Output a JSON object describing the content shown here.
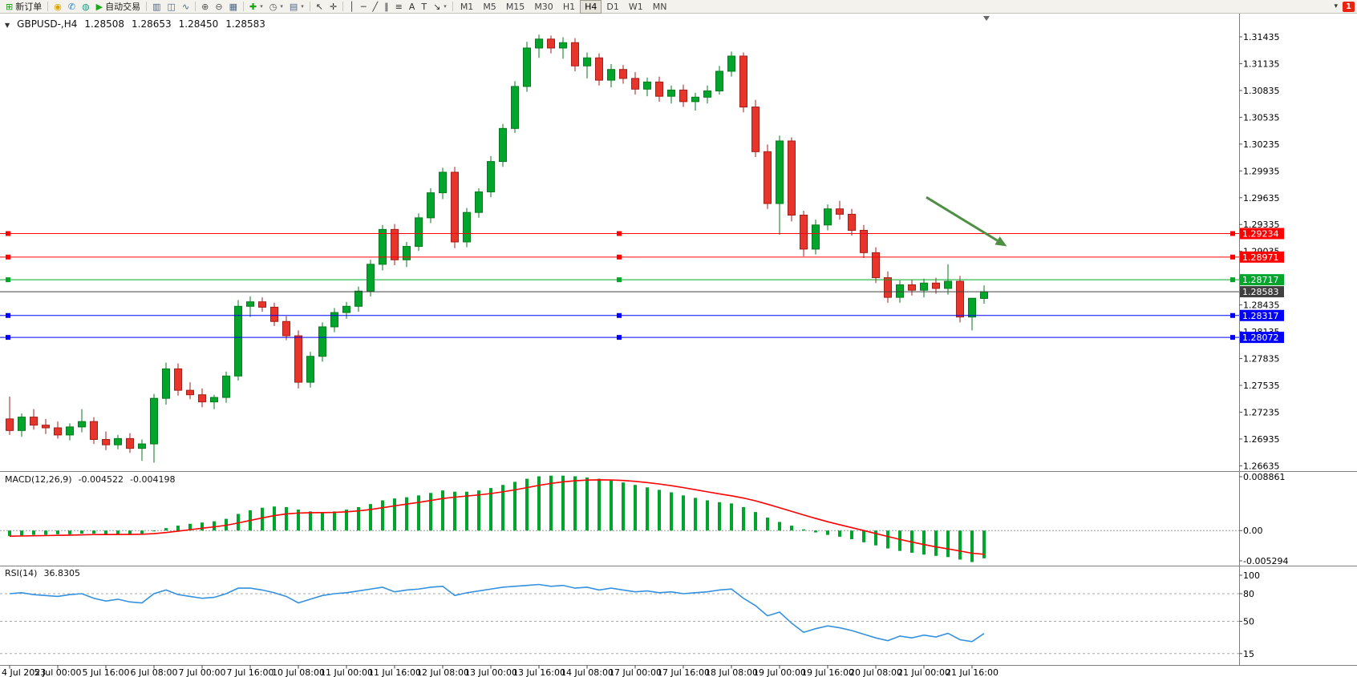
{
  "toolbar": {
    "dropdown_icon": "▾",
    "overflow_icon": "▾",
    "news_badge": "1",
    "timeframes": [
      "M1",
      "M5",
      "M15",
      "M30",
      "H1",
      "H4",
      "D1",
      "W1",
      "MN"
    ],
    "active_timeframe": "H4",
    "items": [
      {
        "name": "new-order-button",
        "glyph": "⊞",
        "glyph_color": "#18A018",
        "label": "新订单"
      },
      {
        "kind": "sep"
      },
      {
        "name": "mql5-community-button",
        "glyph": "◉",
        "glyph_color": "#DFA500"
      },
      {
        "name": "mobile-app-button",
        "glyph": "✆",
        "glyph_color": "#1C7ECB"
      },
      {
        "name": "signals-button",
        "glyph": "◍",
        "glyph_color": "#16A08A"
      },
      {
        "name": "autotrade-button",
        "glyph": "▶",
        "glyph_color": "#1BAA1B",
        "label": "自动交易"
      },
      {
        "kind": "sep"
      },
      {
        "name": "bar-chart-button",
        "glyph": "▥",
        "glyph_color": "#4A6785"
      },
      {
        "name": "candlestick-chart-button",
        "glyph": "◫",
        "glyph_color": "#4A6785"
      },
      {
        "name": "line-chart-button",
        "glyph": "∿",
        "glyph_color": "#4A6785"
      },
      {
        "kind": "sep"
      },
      {
        "name": "zoom-in-button",
        "glyph": "⊕",
        "glyph_color": "#555555"
      },
      {
        "name": "zoom-out-button",
        "glyph": "⊖",
        "glyph_color": "#555555"
      },
      {
        "name": "tile-windows-button",
        "glyph": "▦",
        "glyph_color": "#4A6785"
      },
      {
        "kind": "sep"
      },
      {
        "name": "indicators-button",
        "glyph": "✚",
        "glyph_color": "#18A018",
        "dropdown": true
      },
      {
        "name": "periods-button",
        "glyph": "◷",
        "glyph_color": "#555555",
        "dropdown": true
      },
      {
        "name": "templates-button",
        "glyph": "▤",
        "glyph_color": "#4A6785",
        "dropdown": true
      },
      {
        "kind": "sep"
      },
      {
        "name": "cursor-button",
        "glyph": "↖",
        "glyph_color": "#333333"
      },
      {
        "name": "crosshair-button",
        "glyph": "✛",
        "glyph_color": "#333333"
      },
      {
        "kind": "sep"
      },
      {
        "name": "vertical-line-button",
        "glyph": "│",
        "glyph_color": "#333333"
      },
      {
        "name": "horizontal-line-button",
        "glyph": "─",
        "glyph_color": "#333333"
      },
      {
        "name": "trendline-button",
        "glyph": "╱",
        "glyph_color": "#333333"
      },
      {
        "name": "channel-button",
        "glyph": "∥",
        "glyph_color": "#333333"
      },
      {
        "name": "fibonacci-button",
        "glyph": "≡",
        "glyph_color": "#333333"
      },
      {
        "name": "text-button",
        "glyph": "A",
        "glyph_color": "#333333"
      },
      {
        "name": "text-label-button",
        "glyph": "T",
        "glyph_color": "#333333"
      },
      {
        "name": "arrows-button",
        "glyph": "↘",
        "glyph_color": "#333333",
        "dropdown": true
      },
      {
        "kind": "sep"
      }
    ]
  },
  "icons": {
    "chart_dropdown": "▼"
  },
  "chart": {
    "header": {
      "symbol": "GBPUSD-,H4",
      "open": "1.28508",
      "high": "1.28653",
      "low": "1.28450",
      "close": "1.28583"
    },
    "y_axis_ticks": [
      "1.31435",
      "1.31135",
      "1.30835",
      "1.30535",
      "1.30235",
      "1.29935",
      "1.29635",
      "1.29335",
      "1.29035",
      "1.28735",
      "1.28435",
      "1.28135",
      "1.27835",
      "1.27535",
      "1.27235",
      "1.26935",
      "1.26635"
    ],
    "macd": {
      "label": "MACD(12,26,9)",
      "macd_value": "-0.004522",
      "signal_value": "-0.004198",
      "axis_ticks": [
        "0.008861",
        "0.00",
        "-0.005294"
      ]
    },
    "rsi": {
      "label": "RSI(14)",
      "value": "36.8305",
      "axis_ticks": [
        "100",
        "80",
        "50",
        "15"
      ],
      "levels": [
        80,
        50,
        15
      ]
    },
    "colors": {
      "bull": "#00A62C",
      "bull_border": "#067A1E",
      "bear": "#E8352B",
      "bear_border": "#A61E18",
      "macd_hist": "#00A62C",
      "macd_signal": "#FF0000",
      "rsi_line": "#3391E0",
      "arrow": "#4E8F44",
      "axis_line": "#808080",
      "badge_text": "#FFFFFF"
    }
  },
  "chart_data": {
    "type": "candlestick",
    "symbol": "GBPUSD-",
    "timeframe": "H4",
    "x_labels": [
      "4 Jul 2023",
      "5 Jul 00:00",
      "5 Jul 16:00",
      "6 Jul 08:00",
      "7 Jul 00:00",
      "7 Jul 16:00",
      "10 Jul 08:00",
      "11 Jul 00:00",
      "11 Jul 16:00",
      "12 Jul 08:00",
      "13 Jul 00:00",
      "13 Jul 16:00",
      "14 Jul 08:00",
      "17 Jul 00:00",
      "17 Jul 16:00",
      "18 Jul 08:00",
      "19 Jul 00:00",
      "19 Jul 16:00",
      "20 Jul 08:00",
      "21 Jul 00:00",
      "21 Jul 16:00"
    ],
    "candles_ohlc": [
      [
        1.2716,
        1.2741,
        1.2698,
        1.2703
      ],
      [
        1.2703,
        1.2722,
        1.2696,
        1.2718
      ],
      [
        1.2718,
        1.2727,
        1.2704,
        1.2709
      ],
      [
        1.2709,
        1.2716,
        1.2699,
        1.2706
      ],
      [
        1.2706,
        1.2713,
        1.2694,
        1.2698
      ],
      [
        1.2698,
        1.2711,
        1.2692,
        1.2707
      ],
      [
        1.2707,
        1.2727,
        1.2701,
        1.2713
      ],
      [
        1.2713,
        1.2718,
        1.2688,
        1.2693
      ],
      [
        1.2693,
        1.2702,
        1.2681,
        1.2687
      ],
      [
        1.2687,
        1.2698,
        1.2682,
        1.2694
      ],
      [
        1.2694,
        1.27,
        1.2678,
        1.2683
      ],
      [
        1.2683,
        1.2693,
        1.2669,
        1.2688
      ],
      [
        1.2688,
        1.2744,
        1.2667,
        1.2739
      ],
      [
        1.2739,
        1.2779,
        1.2732,
        1.2772
      ],
      [
        1.2772,
        1.2778,
        1.2742,
        1.2748
      ],
      [
        1.2748,
        1.2757,
        1.2738,
        1.2743
      ],
      [
        1.2743,
        1.275,
        1.2729,
        1.2735
      ],
      [
        1.2735,
        1.2743,
        1.2727,
        1.274
      ],
      [
        1.274,
        1.2769,
        1.2734,
        1.2764
      ],
      [
        1.2764,
        1.2849,
        1.2759,
        1.2842
      ],
      [
        1.2842,
        1.2853,
        1.283,
        1.2847
      ],
      [
        1.2847,
        1.2852,
        1.2836,
        1.2841
      ],
      [
        1.2841,
        1.2846,
        1.282,
        1.2825
      ],
      [
        1.2825,
        1.2831,
        1.2804,
        1.2809
      ],
      [
        1.2809,
        1.2815,
        1.275,
        1.2757
      ],
      [
        1.2757,
        1.2791,
        1.2751,
        1.2786
      ],
      [
        1.2786,
        1.2824,
        1.278,
        1.2819
      ],
      [
        1.2819,
        1.284,
        1.2813,
        1.2835
      ],
      [
        1.2835,
        1.2847,
        1.2828,
        1.2842
      ],
      [
        1.2842,
        1.2864,
        1.2836,
        1.2859
      ],
      [
        1.2859,
        1.2894,
        1.2853,
        1.2889
      ],
      [
        1.2889,
        1.2933,
        1.2882,
        1.2928
      ],
      [
        1.2928,
        1.2934,
        1.2888,
        1.2894
      ],
      [
        1.2894,
        1.2914,
        1.2886,
        1.2909
      ],
      [
        1.2909,
        1.2946,
        1.2904,
        1.2941
      ],
      [
        1.2941,
        1.2974,
        1.2935,
        1.2969
      ],
      [
        1.2969,
        1.2997,
        1.2962,
        1.2992
      ],
      [
        1.2992,
        1.2998,
        1.2907,
        1.2914
      ],
      [
        1.2914,
        1.2952,
        1.2908,
        1.2947
      ],
      [
        1.2947,
        1.2974,
        1.2941,
        1.297
      ],
      [
        1.297,
        1.301,
        1.2964,
        1.3004
      ],
      [
        1.3004,
        1.3046,
        1.2998,
        1.3041
      ],
      [
        1.3041,
        1.3094,
        1.3036,
        1.3088
      ],
      [
        1.3088,
        1.3138,
        1.3082,
        1.3131
      ],
      [
        1.3131,
        1.3146,
        1.312,
        1.3141
      ],
      [
        1.3141,
        1.3145,
        1.3125,
        1.3131
      ],
      [
        1.3131,
        1.3143,
        1.3119,
        1.3137
      ],
      [
        1.3137,
        1.3142,
        1.3105,
        1.3111
      ],
      [
        1.3111,
        1.3126,
        1.3097,
        1.312
      ],
      [
        1.312,
        1.3125,
        1.3089,
        1.3095
      ],
      [
        1.3095,
        1.3113,
        1.3087,
        1.3107
      ],
      [
        1.3107,
        1.3112,
        1.3091,
        1.3097
      ],
      [
        1.3097,
        1.3104,
        1.3079,
        1.3085
      ],
      [
        1.3085,
        1.3098,
        1.3077,
        1.3093
      ],
      [
        1.3093,
        1.3099,
        1.3071,
        1.3077
      ],
      [
        1.3077,
        1.3089,
        1.3069,
        1.3084
      ],
      [
        1.3084,
        1.309,
        1.3065,
        1.3071
      ],
      [
        1.3071,
        1.3081,
        1.3061,
        1.3076
      ],
      [
        1.3076,
        1.3089,
        1.3069,
        1.3083
      ],
      [
        1.3083,
        1.3111,
        1.3079,
        1.3105
      ],
      [
        1.3105,
        1.3127,
        1.3099,
        1.3122
      ],
      [
        1.3122,
        1.3126,
        1.3059,
        1.3065
      ],
      [
        1.3065,
        1.3073,
        1.3009,
        1.3015
      ],
      [
        1.3015,
        1.3023,
        1.2951,
        1.2957
      ],
      [
        1.2957,
        1.3033,
        1.2922,
        1.3027
      ],
      [
        1.3027,
        1.3031,
        1.2937,
        1.2944
      ],
      [
        1.2944,
        1.2949,
        1.2898,
        1.2906
      ],
      [
        1.2906,
        1.2939,
        1.29,
        1.2933
      ],
      [
        1.2933,
        1.2956,
        1.2927,
        1.2951
      ],
      [
        1.2951,
        1.296,
        1.2939,
        1.2945
      ],
      [
        1.2945,
        1.2951,
        1.2921,
        1.2927
      ],
      [
        1.2927,
        1.2933,
        1.2896,
        1.2902
      ],
      [
        1.2902,
        1.2908,
        1.2868,
        1.2874
      ],
      [
        1.2874,
        1.2881,
        1.2846,
        1.2852
      ],
      [
        1.2852,
        1.2871,
        1.2846,
        1.2866
      ],
      [
        1.2866,
        1.2872,
        1.2854,
        1.286
      ],
      [
        1.286,
        1.2873,
        1.2852,
        1.2868
      ],
      [
        1.2868,
        1.2874,
        1.2856,
        1.2862
      ],
      [
        1.2862,
        1.2889,
        1.2855,
        1.287
      ],
      [
        1.287,
        1.2876,
        1.2824,
        1.283
      ],
      [
        1.283,
        1.2836,
        1.2815,
        1.2851
      ],
      [
        1.28508,
        1.28653,
        1.2845,
        1.28583
      ]
    ],
    "horizontal_lines": [
      {
        "price": 1.29234,
        "label": "1.29234",
        "color": "#FF0000",
        "kind": "resistance"
      },
      {
        "price": 1.28971,
        "label": "1.28971",
        "color": "#FF0000",
        "kind": "resistance"
      },
      {
        "price": 1.28717,
        "label": "1.28717",
        "color": "#00A62C",
        "kind": "level"
      },
      {
        "price": 1.28317,
        "label": "1.28317",
        "color": "#0000FF",
        "kind": "support"
      },
      {
        "price": 1.28072,
        "label": "1.28072",
        "color": "#0000FF",
        "kind": "support"
      }
    ],
    "bid_line": {
      "price": 1.28583,
      "label": "1.28583",
      "color": "#404040"
    },
    "arrow": {
      "from": {
        "bar": 76.2,
        "price": 1.2964
      },
      "to": {
        "bar": 82.9,
        "price": 1.2909
      },
      "color": "#4E8F44"
    },
    "macd_signal_period": 9,
    "macd_histogram": [
      -0.0009,
      -0.0008,
      -0.0007,
      -0.0007,
      -0.0006,
      -0.0006,
      -0.0005,
      -0.0005,
      -0.0006,
      -0.0006,
      -0.0006,
      -0.0005,
      -0.0001,
      0.0004,
      0.0008,
      0.0011,
      0.0013,
      0.0015,
      0.0019,
      0.0027,
      0.0033,
      0.0037,
      0.0039,
      0.0038,
      0.0034,
      0.0031,
      0.003,
      0.0031,
      0.0034,
      0.0038,
      0.0043,
      0.0049,
      0.0052,
      0.0054,
      0.0057,
      0.0061,
      0.0065,
      0.0063,
      0.0063,
      0.0065,
      0.0069,
      0.0074,
      0.0079,
      0.0084,
      0.0088,
      0.0089,
      0.0089,
      0.0088,
      0.0086,
      0.0084,
      0.0081,
      0.0078,
      0.0074,
      0.007,
      0.0066,
      0.0062,
      0.0057,
      0.0053,
      0.0049,
      0.0046,
      0.0044,
      0.0038,
      0.003,
      0.0021,
      0.0014,
      0.0008,
      0.0002,
      -0.0003,
      -0.0007,
      -0.001,
      -0.0014,
      -0.0019,
      -0.0024,
      -0.0029,
      -0.0033,
      -0.0036,
      -0.0039,
      -0.0041,
      -0.0043,
      -0.0047,
      -0.0051,
      -0.0045
    ],
    "rsi_values": [
      80,
      81,
      79,
      78,
      77,
      79,
      80,
      75,
      72,
      74,
      71,
      70,
      80,
      84,
      79,
      77,
      75,
      76,
      80,
      86,
      86,
      84,
      81,
      77,
      70,
      74,
      78,
      80,
      81,
      83,
      85,
      87,
      82,
      84,
      85,
      87,
      88,
      78,
      81,
      83,
      85,
      87,
      88,
      89,
      90,
      88,
      89,
      86,
      87,
      84,
      86,
      84,
      82,
      83,
      81,
      82,
      80,
      81,
      82,
      84,
      85,
      75,
      67,
      56,
      60,
      48,
      38,
      42,
      45,
      43,
      40,
      36,
      32,
      29,
      34,
      32,
      35,
      33,
      37,
      30,
      28,
      36.8
    ]
  }
}
